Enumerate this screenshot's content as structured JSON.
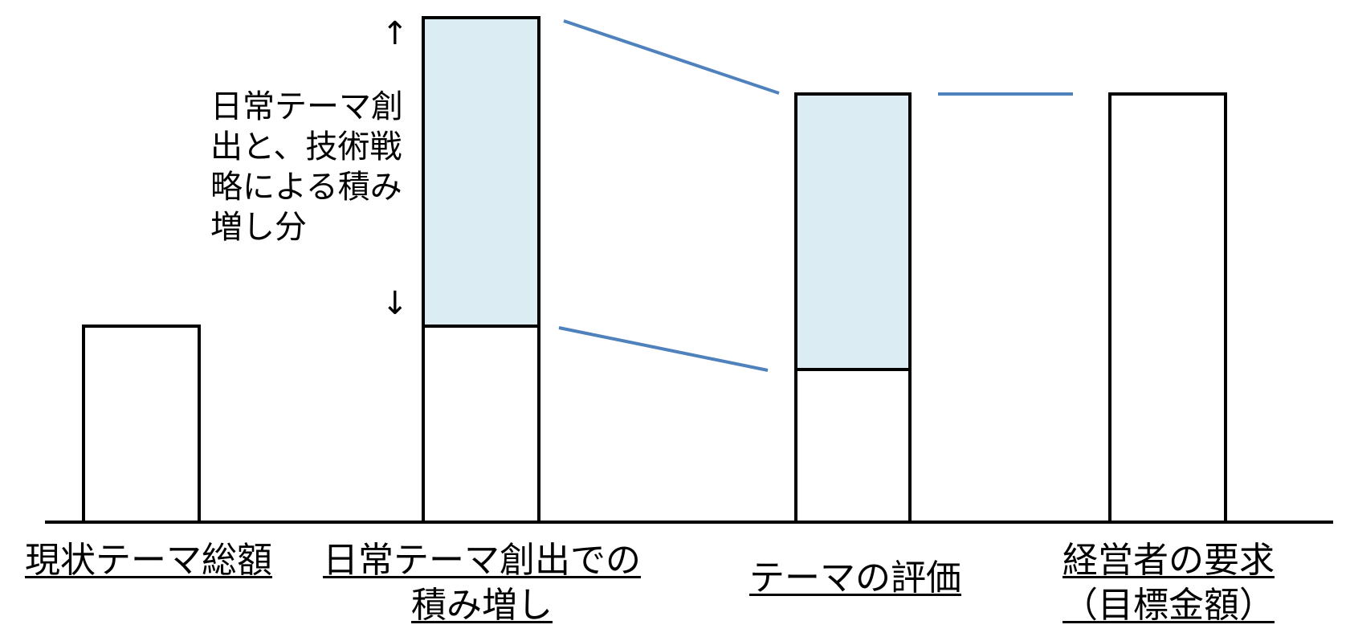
{
  "categories": [
    {
      "lines": [
        "現状テーマ総額"
      ]
    },
    {
      "lines": [
        "日常テーマ創出での",
        "積み増し"
      ]
    },
    {
      "lines": [
        "テーマの評価"
      ]
    },
    {
      "lines": [
        "経営者の要求",
        "（目標金額）"
      ]
    }
  ],
  "annotation": {
    "text": "日常テーマ創\n出と、技術戦\n略による積み\n増し分",
    "arrow_up": "↑",
    "arrow_down": "↓"
  },
  "colors": {
    "increment_fill": "#dbedf3",
    "connector_line": "#4f81bd",
    "outline": "#000000"
  }
}
